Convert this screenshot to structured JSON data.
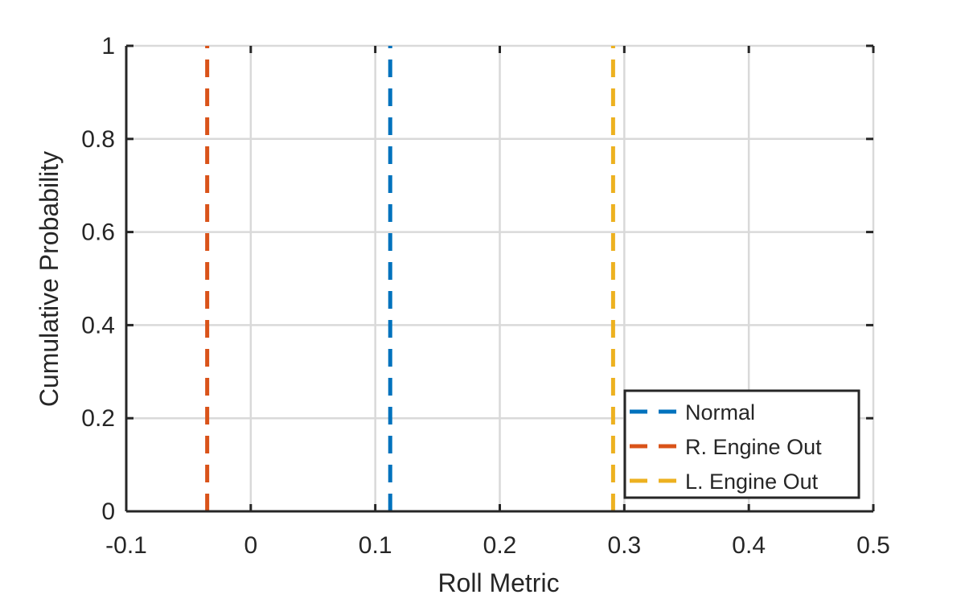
{
  "chart_data": {
    "type": "line",
    "xlabel": "Roll Metric",
    "ylabel": "Cumulative Probability",
    "xlim": [
      -0.1,
      0.5
    ],
    "ylim": [
      0,
      1
    ],
    "xticks": [
      -0.1,
      0,
      0.1,
      0.2,
      0.3,
      0.4,
      0.5
    ],
    "xtick_labels": [
      "-0.1",
      "0",
      "0.1",
      "0.2",
      "0.3",
      "0.4",
      "0.5"
    ],
    "yticks": [
      0,
      0.2,
      0.4,
      0.6,
      0.8,
      1
    ],
    "ytick_labels": [
      "0",
      "0.2",
      "0.4",
      "0.6",
      "0.8",
      "1"
    ],
    "grid": true,
    "legend_position": "bottom-right",
    "series": [
      {
        "name": "Normal",
        "color": "#0072BD",
        "line_style": "dashed",
        "x": [
          0.112,
          0.112
        ],
        "y": [
          0,
          1
        ]
      },
      {
        "name": "R. Engine Out",
        "color": "#D95319",
        "line_style": "dashed",
        "x": [
          -0.035,
          -0.035
        ],
        "y": [
          0,
          1
        ]
      },
      {
        "name": "L. Engine Out",
        "color": "#EDB120",
        "line_style": "dashed",
        "x": [
          0.291,
          0.291
        ],
        "y": [
          0,
          1
        ]
      }
    ]
  }
}
